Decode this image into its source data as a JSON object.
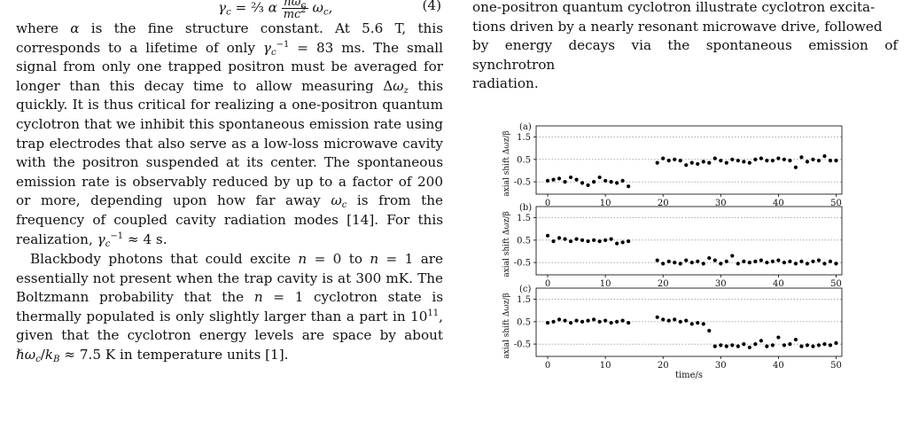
{
  "left_column": {
    "equation": {
      "text": "γc = (2/3) α (ℏωc / mc²) ωc,",
      "number": "(4)"
    },
    "paragraphs": [
      "where α is the fine structure constant. At 5.6 T, this corresponds to a lifetime of only γc⁻¹ = 83 ms. The small signal from only one trapped positron must be averaged for longer than this decay time to allow measuring Δωz this quickly. It is thus critical for realizing a one-positron quantum cyclotron that we inhibit this spontaneous emission rate using trap electrodes that also serve as a low-loss microwave cavity with the positron suspended at its center. The spontaneous emission rate is observably reduced by up to a factor of 200 or more, depending upon how far away ωc is from the frequency of coupled cavity radiation modes [14]. For this realization, γc⁻¹ ≈ 4 s.",
      "Blackbody photons that could excite n = 0 to n = 1 are essentially not present when the trap cavity is at 300 mK. The Boltzmann probability that the n = 1 cyclotron state is thermally populated is only slightly larger than a part in 10¹¹, given that the cyclotron energy levels are space by about ℏωc/kB ≈ 7.5 K in temperature units [1]."
    ]
  },
  "right_column": {
    "caption_lines": [
      "one-positron quantum cyclotron illustrate cyclotron excita-",
      "tions driven by a nearly resonant microwave drive, followed",
      "by energy decays via the spontaneous emission of synchrotron",
      "radiation."
    ]
  },
  "chart_data": [
    {
      "type": "scatter",
      "panel_label": "(a)",
      "ylabel": "axial shift Δωz/β",
      "xlabel": "",
      "xlim": [
        -2,
        51
      ],
      "ylim": [
        -1.05,
        2.0
      ],
      "xticks": [
        "0",
        "10",
        "20",
        "30",
        "40",
        "50"
      ],
      "yticks": [
        "1.5",
        "0.5",
        "-0.5"
      ],
      "grid": "horizontal dotted",
      "points": [
        [
          0,
          -0.45
        ],
        [
          1,
          -0.4
        ],
        [
          2,
          -0.35
        ],
        [
          3,
          -0.5
        ],
        [
          4,
          -0.3
        ],
        [
          5,
          -0.4
        ],
        [
          6,
          -0.55
        ],
        [
          7,
          -0.65
        ],
        [
          8,
          -0.5
        ],
        [
          9,
          -0.3
        ],
        [
          10,
          -0.45
        ],
        [
          11,
          -0.5
        ],
        [
          12,
          -0.55
        ],
        [
          13,
          -0.45
        ],
        [
          14,
          -0.7
        ],
        [
          19,
          0.35
        ],
        [
          20,
          0.55
        ],
        [
          21,
          0.45
        ],
        [
          22,
          0.5
        ],
        [
          23,
          0.45
        ],
        [
          24,
          0.25
        ],
        [
          25,
          0.35
        ],
        [
          26,
          0.3
        ],
        [
          27,
          0.4
        ],
        [
          28,
          0.35
        ],
        [
          29,
          0.55
        ],
        [
          30,
          0.45
        ],
        [
          31,
          0.35
        ],
        [
          32,
          0.5
        ],
        [
          33,
          0.45
        ],
        [
          34,
          0.4
        ],
        [
          35,
          0.35
        ],
        [
          36,
          0.5
        ],
        [
          37,
          0.55
        ],
        [
          38,
          0.45
        ],
        [
          39,
          0.45
        ],
        [
          40,
          0.55
        ],
        [
          41,
          0.5
        ],
        [
          42,
          0.45
        ],
        [
          43,
          0.15
        ],
        [
          44,
          0.6
        ],
        [
          45,
          0.4
        ],
        [
          46,
          0.5
        ],
        [
          47,
          0.45
        ],
        [
          48,
          0.65
        ],
        [
          49,
          0.45
        ],
        [
          50,
          0.45
        ]
      ]
    },
    {
      "type": "scatter",
      "panel_label": "(b)",
      "ylabel": "axial shift Δωz/β",
      "xlabel": "",
      "xlim": [
        -2,
        51
      ],
      "ylim": [
        -1.05,
        2.0
      ],
      "xticks": [
        "0",
        "10",
        "20",
        "30",
        "40",
        "50"
      ],
      "yticks": [
        "1.5",
        "0.5",
        "-0.5"
      ],
      "grid": "horizontal dotted",
      "points": [
        [
          0,
          0.7
        ],
        [
          1,
          0.45
        ],
        [
          2,
          0.6
        ],
        [
          3,
          0.55
        ],
        [
          4,
          0.45
        ],
        [
          5,
          0.55
        ],
        [
          6,
          0.5
        ],
        [
          7,
          0.45
        ],
        [
          8,
          0.5
        ],
        [
          9,
          0.45
        ],
        [
          10,
          0.5
        ],
        [
          11,
          0.55
        ],
        [
          12,
          0.35
        ],
        [
          13,
          0.4
        ],
        [
          14,
          0.45
        ],
        [
          19,
          -0.4
        ],
        [
          20,
          -0.55
        ],
        [
          21,
          -0.45
        ],
        [
          22,
          -0.5
        ],
        [
          23,
          -0.55
        ],
        [
          24,
          -0.4
        ],
        [
          25,
          -0.5
        ],
        [
          26,
          -0.45
        ],
        [
          27,
          -0.55
        ],
        [
          28,
          -0.3
        ],
        [
          29,
          -0.4
        ],
        [
          30,
          -0.55
        ],
        [
          31,
          -0.45
        ],
        [
          32,
          -0.2
        ],
        [
          33,
          -0.55
        ],
        [
          34,
          -0.45
        ],
        [
          35,
          -0.5
        ],
        [
          36,
          -0.45
        ],
        [
          37,
          -0.4
        ],
        [
          38,
          -0.5
        ],
        [
          39,
          -0.45
        ],
        [
          40,
          -0.4
        ],
        [
          41,
          -0.5
        ],
        [
          42,
          -0.45
        ],
        [
          43,
          -0.55
        ],
        [
          44,
          -0.45
        ],
        [
          45,
          -0.55
        ],
        [
          46,
          -0.45
        ],
        [
          47,
          -0.4
        ],
        [
          48,
          -0.55
        ],
        [
          49,
          -0.45
        ],
        [
          50,
          -0.55
        ]
      ]
    },
    {
      "type": "scatter",
      "panel_label": "(c)",
      "ylabel": "axial shift Δωz/β",
      "xlabel": "time/s",
      "xlim": [
        -2,
        51
      ],
      "ylim": [
        -1.05,
        2.0
      ],
      "xticks": [
        "0",
        "10",
        "20",
        "30",
        "40",
        "50"
      ],
      "yticks": [
        "1.5",
        "0.5",
        "-0.5"
      ],
      "grid": "horizontal dotted",
      "points": [
        [
          0,
          0.45
        ],
        [
          1,
          0.5
        ],
        [
          2,
          0.6
        ],
        [
          3,
          0.55
        ],
        [
          4,
          0.45
        ],
        [
          5,
          0.55
        ],
        [
          6,
          0.5
        ],
        [
          7,
          0.55
        ],
        [
          8,
          0.6
        ],
        [
          9,
          0.5
        ],
        [
          10,
          0.55
        ],
        [
          11,
          0.45
        ],
        [
          12,
          0.5
        ],
        [
          13,
          0.55
        ],
        [
          14,
          0.45
        ],
        [
          19,
          0.7
        ],
        [
          20,
          0.6
        ],
        [
          21,
          0.55
        ],
        [
          22,
          0.6
        ],
        [
          23,
          0.5
        ],
        [
          24,
          0.55
        ],
        [
          25,
          0.4
        ],
        [
          26,
          0.45
        ],
        [
          27,
          0.4
        ],
        [
          28,
          0.1
        ],
        [
          29,
          -0.6
        ],
        [
          30,
          -0.55
        ],
        [
          31,
          -0.6
        ],
        [
          32,
          -0.55
        ],
        [
          33,
          -0.6
        ],
        [
          34,
          -0.5
        ],
        [
          35,
          -0.65
        ],
        [
          36,
          -0.5
        ],
        [
          37,
          -0.35
        ],
        [
          38,
          -0.6
        ],
        [
          39,
          -0.55
        ],
        [
          40,
          -0.2
        ],
        [
          41,
          -0.55
        ],
        [
          42,
          -0.5
        ],
        [
          43,
          -0.3
        ],
        [
          44,
          -0.6
        ],
        [
          45,
          -0.55
        ],
        [
          46,
          -0.6
        ],
        [
          47,
          -0.55
        ],
        [
          48,
          -0.5
        ],
        [
          49,
          -0.55
        ],
        [
          50,
          -0.45
        ]
      ]
    }
  ]
}
